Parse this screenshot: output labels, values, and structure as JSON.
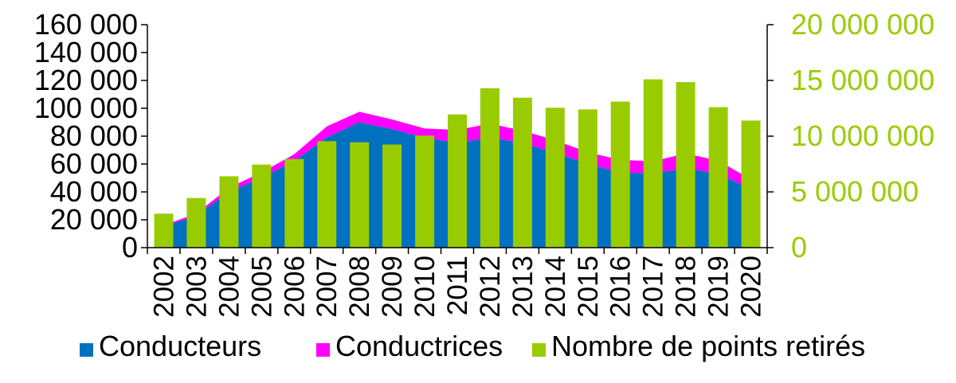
{
  "chart_data": {
    "type": "area+bar",
    "categories": [
      "2002",
      "2003",
      "2004",
      "2005",
      "2006",
      "2007",
      "2008",
      "2009",
      "2010",
      "2011",
      "2012",
      "2013",
      "2014",
      "2015",
      "2016",
      "2017",
      "2018",
      "2019",
      "2020"
    ],
    "series": [
      {
        "name": "Conducteurs",
        "kind": "stacked-area",
        "axis": "left",
        "color": "#0070C0",
        "values": [
          15000,
          23000,
          40000,
          50000,
          62000,
          79000,
          90000,
          85000,
          79000,
          75000,
          79000,
          75000,
          68000,
          60000,
          54000,
          53000,
          57000,
          53000,
          42000
        ]
      },
      {
        "name": "Conductrices",
        "kind": "stacked-area",
        "axis": "left",
        "color": "#FF00FF",
        "values": [
          1000,
          1500,
          3000,
          4000,
          5000,
          8000,
          7500,
          7000,
          6500,
          9500,
          10000,
          9000,
          9000,
          8500,
          9000,
          9000,
          10500,
          9500,
          7000
        ]
      },
      {
        "name": "Nombre de points retirés",
        "kind": "bar",
        "axis": "right",
        "color": "#99CC00",
        "values": [
          3050000,
          4450000,
          6400000,
          7450000,
          7950000,
          9550000,
          9450000,
          9250000,
          10050000,
          11950000,
          14300000,
          13450000,
          12550000,
          12400000,
          13100000,
          15100000,
          14850000,
          12600000,
          11400000
        ]
      }
    ],
    "y_left": {
      "min": 0,
      "max": 160000,
      "ticks": [
        0,
        20000,
        40000,
        60000,
        80000,
        100000,
        120000,
        140000,
        160000
      ],
      "tick_labels": [
        "0",
        "20 000",
        "40 000",
        "60 000",
        "80 000",
        "100 000",
        "120 000",
        "140 000",
        "160 000"
      ]
    },
    "y_right": {
      "min": 0,
      "max": 20000000,
      "ticks": [
        0,
        5000000,
        10000000,
        15000000,
        20000000
      ],
      "tick_labels": [
        "0",
        "5 000 000",
        "10 000 000",
        "15 000 000",
        "20 000 000"
      ],
      "color": "#99CC00"
    },
    "grid": false,
    "legend_position": "bottom",
    "title": "",
    "xlabel": "",
    "ylabel": ""
  }
}
